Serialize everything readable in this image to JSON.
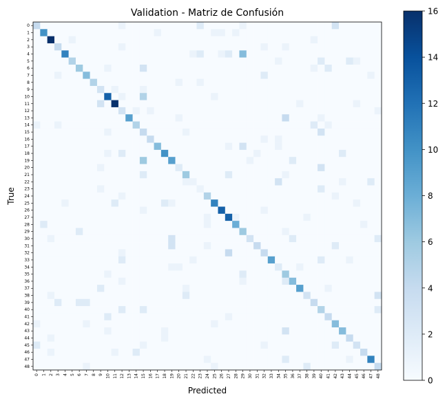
{
  "chart_data": {
    "type": "heatmap",
    "title": "Validation - Matriz de Confusión",
    "xlabel": "Predicted",
    "ylabel": "True",
    "n_classes": 49,
    "x_tick_labels": [
      "0",
      "1",
      "2",
      "3",
      "4",
      "5",
      "6",
      "7",
      "8",
      "9",
      "10",
      "11",
      "12",
      "13",
      "14",
      "15",
      "16",
      "17",
      "18",
      "19",
      "20",
      "21",
      "22",
      "23",
      "24",
      "25",
      "26",
      "27",
      "28",
      "29",
      "30",
      "31",
      "32",
      "33",
      "34",
      "35",
      "36",
      "37",
      "38",
      "39",
      "40",
      "41",
      "42",
      "43",
      "44",
      "45",
      "46",
      "47",
      "48"
    ],
    "y_tick_labels": [
      "0",
      "1",
      "2",
      "3",
      "4",
      "5",
      "6",
      "7",
      "8",
      "9",
      "10",
      "11",
      "12",
      "13",
      "14",
      "15",
      "16",
      "17",
      "18",
      "19",
      "20",
      "21",
      "22",
      "23",
      "24",
      "25",
      "26",
      "27",
      "28",
      "29",
      "30",
      "31",
      "32",
      "33",
      "34",
      "35",
      "36",
      "37",
      "38",
      "39",
      "40",
      "41",
      "42",
      "43",
      "44",
      "45",
      "46",
      "47",
      "48"
    ],
    "colorbar": {
      "min": 0,
      "max": 16,
      "ticks": [
        0,
        2,
        4,
        6,
        8,
        10,
        12,
        14,
        16
      ],
      "colormap": "Blues"
    },
    "diagonal": [
      4,
      10,
      16,
      4,
      11,
      5,
      6,
      7,
      5,
      3,
      13,
      16,
      3,
      9,
      5,
      4,
      4,
      7,
      10,
      9,
      2,
      6,
      1,
      1,
      5,
      11,
      13,
      13,
      8,
      6,
      3,
      4,
      4,
      9,
      2,
      6,
      7,
      9,
      3,
      4,
      5,
      4,
      7,
      7,
      4,
      3,
      4,
      11,
      4
    ],
    "off_diagonal": [
      {
        "r": 0,
        "c": 12,
        "v": 1
      },
      {
        "r": 0,
        "c": 23,
        "v": 2
      },
      {
        "r": 0,
        "c": 42,
        "v": 3
      },
      {
        "r": 0,
        "c": 29,
        "v": 1
      },
      {
        "r": 1,
        "c": 17,
        "v": 1
      },
      {
        "r": 1,
        "c": 25,
        "v": 1
      },
      {
        "r": 1,
        "c": 26,
        "v": 1
      },
      {
        "r": 1,
        "c": 28,
        "v": 1
      },
      {
        "r": 2,
        "c": 5,
        "v": 1
      },
      {
        "r": 2,
        "c": 39,
        "v": 1
      },
      {
        "r": 3,
        "c": 12,
        "v": 1
      },
      {
        "r": 3,
        "c": 32,
        "v": 1
      },
      {
        "r": 3,
        "c": 35,
        "v": 1
      },
      {
        "r": 4,
        "c": 23,
        "v": 2
      },
      {
        "r": 4,
        "c": 26,
        "v": 1
      },
      {
        "r": 4,
        "c": 27,
        "v": 2
      },
      {
        "r": 4,
        "c": 29,
        "v": 7
      },
      {
        "r": 4,
        "c": 22,
        "v": 1
      },
      {
        "r": 5,
        "c": 40,
        "v": 2
      },
      {
        "r": 5,
        "c": 44,
        "v": 2
      },
      {
        "r": 5,
        "c": 45,
        "v": 1
      },
      {
        "r": 5,
        "c": 34,
        "v": 1
      },
      {
        "r": 6,
        "c": 15,
        "v": 3
      },
      {
        "r": 6,
        "c": 39,
        "v": 1
      },
      {
        "r": 6,
        "c": 41,
        "v": 2
      },
      {
        "r": 6,
        "c": 10,
        "v": 1
      },
      {
        "r": 7,
        "c": 3,
        "v": 1
      },
      {
        "r": 7,
        "c": 32,
        "v": 2
      },
      {
        "r": 7,
        "c": 47,
        "v": 1
      },
      {
        "r": 8,
        "c": 20,
        "v": 1
      },
      {
        "r": 8,
        "c": 23,
        "v": 1
      },
      {
        "r": 9,
        "c": 11,
        "v": 1
      },
      {
        "r": 9,
        "c": 15,
        "v": 1
      },
      {
        "r": 10,
        "c": 15,
        "v": 5
      },
      {
        "r": 10,
        "c": 25,
        "v": 1
      },
      {
        "r": 10,
        "c": 12,
        "v": 1
      },
      {
        "r": 11,
        "c": 9,
        "v": 3
      },
      {
        "r": 11,
        "c": 37,
        "v": 1
      },
      {
        "r": 11,
        "c": 45,
        "v": 1
      },
      {
        "r": 12,
        "c": 14,
        "v": 1
      },
      {
        "r": 12,
        "c": 16,
        "v": 1
      },
      {
        "r": 12,
        "c": 48,
        "v": 1
      },
      {
        "r": 13,
        "c": 35,
        "v": 4
      },
      {
        "r": 13,
        "c": 20,
        "v": 1
      },
      {
        "r": 13,
        "c": 40,
        "v": 1
      },
      {
        "r": 14,
        "c": 0,
        "v": 1
      },
      {
        "r": 14,
        "c": 3,
        "v": 1
      },
      {
        "r": 14,
        "c": 39,
        "v": 2
      },
      {
        "r": 14,
        "c": 41,
        "v": 1
      },
      {
        "r": 15,
        "c": 40,
        "v": 3
      },
      {
        "r": 15,
        "c": 10,
        "v": 1
      },
      {
        "r": 15,
        "c": 21,
        "v": 1
      },
      {
        "r": 16,
        "c": 32,
        "v": 1
      },
      {
        "r": 16,
        "c": 34,
        "v": 1
      },
      {
        "r": 17,
        "c": 29,
        "v": 3
      },
      {
        "r": 17,
        "c": 27,
        "v": 1
      },
      {
        "r": 17,
        "c": 34,
        "v": 1
      },
      {
        "r": 18,
        "c": 12,
        "v": 2
      },
      {
        "r": 18,
        "c": 10,
        "v": 1
      },
      {
        "r": 18,
        "c": 43,
        "v": 2
      },
      {
        "r": 18,
        "c": 31,
        "v": 1
      },
      {
        "r": 19,
        "c": 15,
        "v": 6
      },
      {
        "r": 19,
        "c": 36,
        "v": 2
      },
      {
        "r": 19,
        "c": 30,
        "v": 1
      },
      {
        "r": 20,
        "c": 40,
        "v": 3
      },
      {
        "r": 20,
        "c": 9,
        "v": 1
      },
      {
        "r": 21,
        "c": 15,
        "v": 2
      },
      {
        "r": 21,
        "c": 27,
        "v": 2
      },
      {
        "r": 21,
        "c": 35,
        "v": 1
      },
      {
        "r": 22,
        "c": 34,
        "v": 3
      },
      {
        "r": 22,
        "c": 47,
        "v": 2
      },
      {
        "r": 22,
        "c": 21,
        "v": 1
      },
      {
        "r": 22,
        "c": 43,
        "v": 1
      },
      {
        "r": 23,
        "c": 40,
        "v": 2
      },
      {
        "r": 23,
        "c": 9,
        "v": 1
      },
      {
        "r": 24,
        "c": 12,
        "v": 1
      },
      {
        "r": 24,
        "c": 42,
        "v": 1
      },
      {
        "r": 25,
        "c": 11,
        "v": 2
      },
      {
        "r": 25,
        "c": 18,
        "v": 2
      },
      {
        "r": 25,
        "c": 19,
        "v": 1
      },
      {
        "r": 25,
        "c": 4,
        "v": 1
      },
      {
        "r": 25,
        "c": 45,
        "v": 1
      },
      {
        "r": 26,
        "c": 15,
        "v": 1
      },
      {
        "r": 26,
        "c": 32,
        "v": 1
      },
      {
        "r": 27,
        "c": 28,
        "v": 1
      },
      {
        "r": 27,
        "c": 24,
        "v": 1
      },
      {
        "r": 27,
        "c": 38,
        "v": 1
      },
      {
        "r": 28,
        "c": 1,
        "v": 2
      },
      {
        "r": 28,
        "c": 24,
        "v": 1
      },
      {
        "r": 28,
        "c": 46,
        "v": 1
      },
      {
        "r": 29,
        "c": 6,
        "v": 2
      },
      {
        "r": 29,
        "c": 35,
        "v": 1
      },
      {
        "r": 30,
        "c": 19,
        "v": 3
      },
      {
        "r": 30,
        "c": 36,
        "v": 2
      },
      {
        "r": 30,
        "c": 48,
        "v": 2
      },
      {
        "r": 30,
        "c": 2,
        "v": 1
      },
      {
        "r": 31,
        "c": 19,
        "v": 3
      },
      {
        "r": 31,
        "c": 42,
        "v": 2
      },
      {
        "r": 31,
        "c": 24,
        "v": 1
      },
      {
        "r": 32,
        "c": 27,
        "v": 4
      },
      {
        "r": 32,
        "c": 12,
        "v": 1
      },
      {
        "r": 33,
        "c": 12,
        "v": 2
      },
      {
        "r": 33,
        "c": 40,
        "v": 2
      },
      {
        "r": 33,
        "c": 44,
        "v": 1
      },
      {
        "r": 33,
        "c": 22,
        "v": 1
      },
      {
        "r": 34,
        "c": 19,
        "v": 1
      },
      {
        "r": 34,
        "c": 20,
        "v": 1
      },
      {
        "r": 34,
        "c": 37,
        "v": 1
      },
      {
        "r": 35,
        "c": 29,
        "v": 2
      },
      {
        "r": 35,
        "c": 10,
        "v": 1
      },
      {
        "r": 36,
        "c": 12,
        "v": 1
      },
      {
        "r": 36,
        "c": 29,
        "v": 1
      },
      {
        "r": 36,
        "c": 35,
        "v": 2
      },
      {
        "r": 37,
        "c": 9,
        "v": 2
      },
      {
        "r": 37,
        "c": 21,
        "v": 1
      },
      {
        "r": 37,
        "c": 41,
        "v": 1
      },
      {
        "r": 38,
        "c": 21,
        "v": 2
      },
      {
        "r": 38,
        "c": 48,
        "v": 3
      },
      {
        "r": 38,
        "c": 2,
        "v": 1
      },
      {
        "r": 39,
        "c": 3,
        "v": 2
      },
      {
        "r": 39,
        "c": 6,
        "v": 2
      },
      {
        "r": 39,
        "c": 7,
        "v": 2
      },
      {
        "r": 40,
        "c": 12,
        "v": 2
      },
      {
        "r": 40,
        "c": 15,
        "v": 2
      },
      {
        "r": 40,
        "c": 48,
        "v": 2
      },
      {
        "r": 41,
        "c": 10,
        "v": 2
      },
      {
        "r": 41,
        "c": 27,
        "v": 1
      },
      {
        "r": 42,
        "c": 0,
        "v": 1
      },
      {
        "r": 42,
        "c": 25,
        "v": 1
      },
      {
        "r": 42,
        "c": 7,
        "v": 1
      },
      {
        "r": 43,
        "c": 18,
        "v": 1
      },
      {
        "r": 43,
        "c": 35,
        "v": 3
      },
      {
        "r": 43,
        "c": 10,
        "v": 1
      },
      {
        "r": 44,
        "c": 2,
        "v": 1
      },
      {
        "r": 44,
        "c": 18,
        "v": 1
      },
      {
        "r": 45,
        "c": 0,
        "v": 2
      },
      {
        "r": 45,
        "c": 15,
        "v": 1
      },
      {
        "r": 45,
        "c": 42,
        "v": 2
      },
      {
        "r": 45,
        "c": 32,
        "v": 1
      },
      {
        "r": 46,
        "c": 14,
        "v": 2
      },
      {
        "r": 46,
        "c": 11,
        "v": 1
      },
      {
        "r": 46,
        "c": 2,
        "v": 1
      },
      {
        "r": 47,
        "c": 35,
        "v": 2
      },
      {
        "r": 47,
        "c": 24,
        "v": 1
      },
      {
        "r": 47,
        "c": 44,
        "v": 1
      },
      {
        "r": 48,
        "c": 7,
        "v": 1
      },
      {
        "r": 48,
        "c": 25,
        "v": 1
      },
      {
        "r": 48,
        "c": 38,
        "v": 2
      }
    ]
  }
}
